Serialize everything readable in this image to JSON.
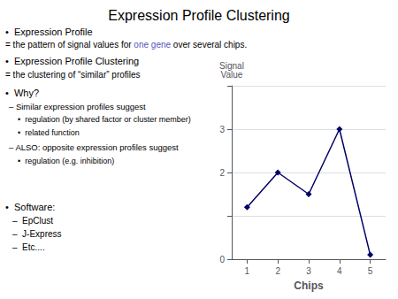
{
  "chart_data": {
    "type": "line",
    "title": "Expression Profile Clustering",
    "x": [
      1,
      2,
      3,
      4,
      5
    ],
    "values": [
      1.2,
      2.0,
      1.5,
      3.0,
      0.1
    ],
    "color": "#000066",
    "marker": "diamond",
    "xlabel": "Chips",
    "ylabel": "Signal\nValue",
    "xlim": [
      0.5,
      5.5
    ],
    "xticks": [
      1,
      2,
      3,
      4,
      5
    ],
    "ylim": [
      0,
      4
    ],
    "yticks": [
      0,
      {
        "value": 1,
        "label": null
      },
      2,
      3,
      {
        "value": 4,
        "label": null
      }
    ],
    "grid": "y",
    "annotations": [
      "•  Expression Profile",
      [
        "= the pattern of signal values for ",
        {
          "text": "one gene",
          "color": "#5555bb"
        },
        " over several chips."
      ],
      "•  Expression Profile Clustering",
      "= the clustering of “similar” profiles",
      "•  Why?",
      "– Similar expression profiles suggest",
      "•  regulation (by shared factor or cluster member)",
      "•  related function",
      "– ALSO: opposite expression profiles suggest",
      "•  regulation (e.g. inhibition)",
      "•  Software:",
      "–  EpClust",
      "–  J-Express",
      "–  Etc...."
    ]
  }
}
